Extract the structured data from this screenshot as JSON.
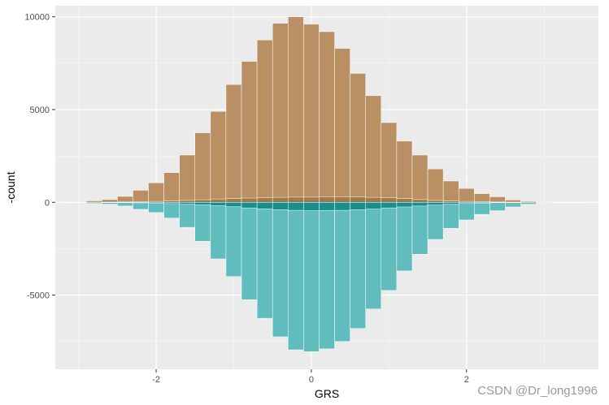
{
  "chart_data": {
    "type": "bar",
    "title": "",
    "xlabel": "GRS",
    "ylabel": "-count",
    "xlim": [
      -3.3,
      3.7
    ],
    "ylim": [
      -9000,
      10600
    ],
    "x_ticks": [
      -2,
      0,
      2
    ],
    "x_tick_labels": [
      "-2",
      "0",
      "2"
    ],
    "y_ticks": [
      -5000,
      0,
      5000,
      10000
    ],
    "y_tick_labels": [
      "-5000",
      "0",
      "5000",
      "10000"
    ],
    "bin_centers": [
      -3.0,
      -2.8,
      -2.6,
      -2.4,
      -2.2,
      -2.0,
      -1.8,
      -1.6,
      -1.4,
      -1.2,
      -1.0,
      -0.8,
      -0.6,
      -0.4,
      -0.2,
      0.0,
      0.2,
      0.4,
      0.6,
      0.8,
      1.0,
      1.2,
      1.4,
      1.6,
      1.8,
      2.0,
      2.2,
      2.4,
      2.6,
      2.8,
      3.0,
      3.2,
      3.4
    ],
    "bin_width": 0.2,
    "grid": true,
    "legend": "none",
    "series": [
      {
        "color": "#b98f63",
        "values": [
          30,
          80,
          150,
          320,
          650,
          1050,
          1600,
          2550,
          3750,
          4900,
          6350,
          7600,
          8750,
          9650,
          10000,
          9600,
          9200,
          8300,
          6950,
          5750,
          4300,
          3300,
          2550,
          1800,
          1150,
          750,
          470,
          300,
          130,
          50,
          20,
          10,
          5
        ]
      },
      {
        "color": "#a07a4e",
        "values": [
          0,
          5,
          10,
          20,
          30,
          50,
          70,
          100,
          140,
          180,
          200,
          230,
          250,
          270,
          280,
          280,
          300,
          300,
          290,
          270,
          250,
          200,
          150,
          100,
          70,
          50,
          30,
          20,
          10,
          5,
          0,
          0,
          0
        ]
      },
      {
        "color": "#61bcbd",
        "values": [
          -20,
          -60,
          -100,
          -200,
          -380,
          -550,
          -850,
          -1350,
          -2100,
          -3050,
          -4000,
          -5250,
          -6250,
          -7250,
          -7950,
          -8050,
          -7900,
          -7500,
          -6800,
          -5750,
          -4750,
          -3700,
          -2800,
          -2000,
          -1400,
          -950,
          -650,
          -450,
          -250,
          -100,
          -30,
          -10,
          -5
        ]
      },
      {
        "color": "#178f8d",
        "values": [
          0,
          0,
          -10,
          -20,
          -30,
          -50,
          -70,
          -100,
          -130,
          -180,
          -240,
          -300,
          -350,
          -400,
          -430,
          -450,
          -440,
          -430,
          -400,
          -360,
          -300,
          -250,
          -200,
          -150,
          -100,
          -60,
          -40,
          -20,
          -10,
          0,
          0,
          0,
          0
        ]
      }
    ],
    "watermark": "CSDN @Dr_long1996",
    "colors": {
      "panel": "#ebebeb",
      "grid_major": "#ffffff",
      "bar_outline": "#ffffff"
    }
  }
}
